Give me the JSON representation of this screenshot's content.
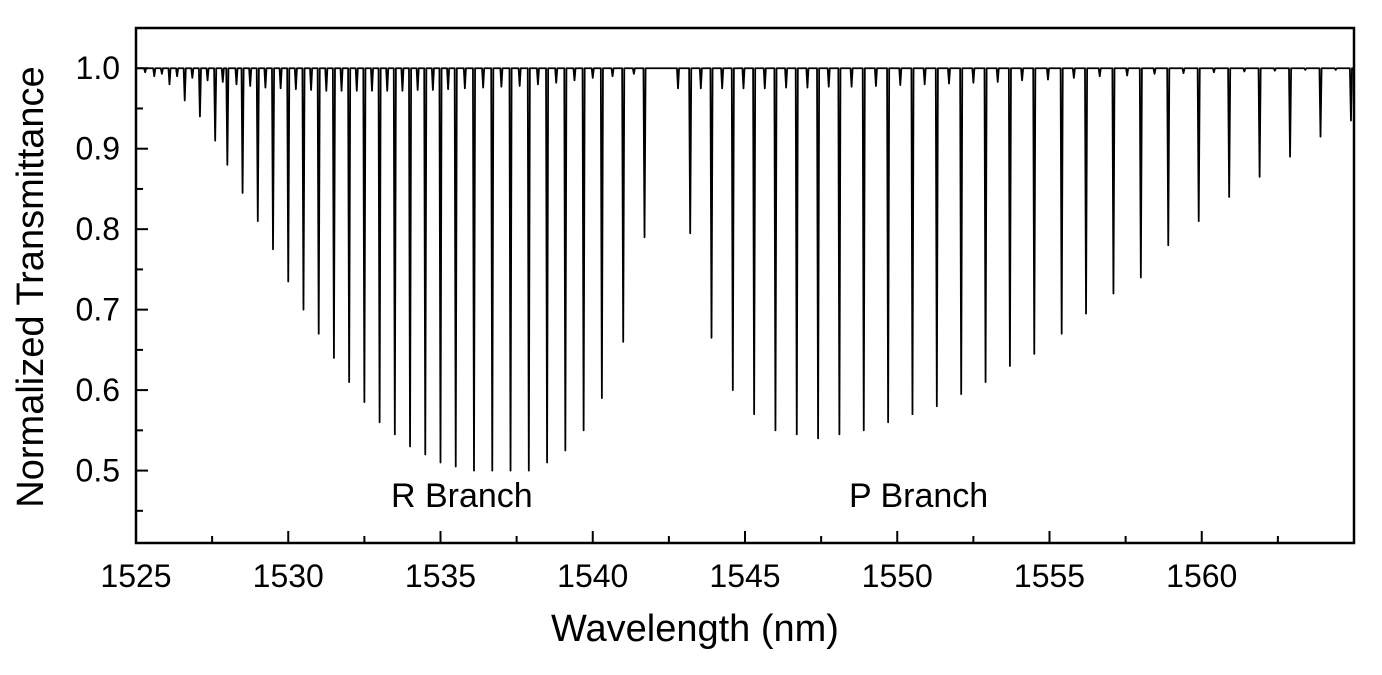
{
  "chart_data": {
    "type": "line",
    "xlabel": "Wavelength (nm)",
    "ylabel": "Normalized Transmittance",
    "xlim": [
      1525,
      1565
    ],
    "ylim": [
      0.41,
      1.05
    ],
    "grid": false,
    "legend": "none",
    "x_ticks": [
      {
        "value": 1525,
        "label": "1525"
      },
      {
        "value": 1530,
        "label": "1530"
      },
      {
        "value": 1535,
        "label": "1535"
      },
      {
        "value": 1540,
        "label": "1540"
      },
      {
        "value": 1545,
        "label": "1545"
      },
      {
        "value": 1550,
        "label": "1550"
      },
      {
        "value": 1555,
        "label": "1555"
      },
      {
        "value": 1560,
        "label": "1560"
      }
    ],
    "y_ticks": [
      {
        "value": 0.5,
        "label": "0.5"
      },
      {
        "value": 0.6,
        "label": "0.6"
      },
      {
        "value": 0.7,
        "label": "0.7"
      },
      {
        "value": 0.8,
        "label": "0.8"
      },
      {
        "value": 0.9,
        "label": "0.9"
      },
      {
        "value": 1.0,
        "label": "1.0"
      }
    ],
    "annotations": [
      {
        "text": "R Branch",
        "x": 1535.7,
        "y": 0.455
      },
      {
        "text": "P Branch",
        "x": 1550.7,
        "y": 0.455
      }
    ],
    "baseline": 1.0,
    "series": [
      {
        "absorption_lines": [
          {
            "x": 1525.6,
            "y": 0.99
          },
          {
            "x": 1526.1,
            "y": 0.98
          },
          {
            "x": 1526.6,
            "y": 0.96
          },
          {
            "x": 1527.1,
            "y": 0.94
          },
          {
            "x": 1527.6,
            "y": 0.91
          },
          {
            "x": 1528.0,
            "y": 0.88
          },
          {
            "x": 1528.5,
            "y": 0.845
          },
          {
            "x": 1529.0,
            "y": 0.81
          },
          {
            "x": 1529.5,
            "y": 0.775
          },
          {
            "x": 1530.0,
            "y": 0.735
          },
          {
            "x": 1530.5,
            "y": 0.7
          },
          {
            "x": 1531.0,
            "y": 0.67
          },
          {
            "x": 1531.5,
            "y": 0.64
          },
          {
            "x": 1532.0,
            "y": 0.61
          },
          {
            "x": 1532.5,
            "y": 0.585
          },
          {
            "x": 1533.0,
            "y": 0.56
          },
          {
            "x": 1533.5,
            "y": 0.545
          },
          {
            "x": 1534.0,
            "y": 0.53
          },
          {
            "x": 1534.5,
            "y": 0.52
          },
          {
            "x": 1535.0,
            "y": 0.51
          },
          {
            "x": 1535.5,
            "y": 0.505
          },
          {
            "x": 1536.1,
            "y": 0.5
          },
          {
            "x": 1536.7,
            "y": 0.5
          },
          {
            "x": 1537.3,
            "y": 0.5
          },
          {
            "x": 1537.9,
            "y": 0.5
          },
          {
            "x": 1538.5,
            "y": 0.51
          },
          {
            "x": 1539.1,
            "y": 0.525
          },
          {
            "x": 1539.7,
            "y": 0.55
          },
          {
            "x": 1540.3,
            "y": 0.59
          },
          {
            "x": 1541.0,
            "y": 0.66
          },
          {
            "x": 1541.7,
            "y": 0.79
          },
          {
            "x": 1543.2,
            "y": 0.795
          },
          {
            "x": 1543.9,
            "y": 0.665
          },
          {
            "x": 1544.6,
            "y": 0.6
          },
          {
            "x": 1545.3,
            "y": 0.57
          },
          {
            "x": 1546.0,
            "y": 0.55
          },
          {
            "x": 1546.7,
            "y": 0.545
          },
          {
            "x": 1547.4,
            "y": 0.54
          },
          {
            "x": 1548.1,
            "y": 0.545
          },
          {
            "x": 1548.9,
            "y": 0.55
          },
          {
            "x": 1549.7,
            "y": 0.56
          },
          {
            "x": 1550.5,
            "y": 0.57
          },
          {
            "x": 1551.3,
            "y": 0.58
          },
          {
            "x": 1552.1,
            "y": 0.595
          },
          {
            "x": 1552.9,
            "y": 0.61
          },
          {
            "x": 1553.7,
            "y": 0.63
          },
          {
            "x": 1554.5,
            "y": 0.645
          },
          {
            "x": 1555.4,
            "y": 0.67
          },
          {
            "x": 1556.2,
            "y": 0.695
          },
          {
            "x": 1557.1,
            "y": 0.72
          },
          {
            "x": 1558.0,
            "y": 0.74
          },
          {
            "x": 1558.9,
            "y": 0.78
          },
          {
            "x": 1559.9,
            "y": 0.81
          },
          {
            "x": 1560.9,
            "y": 0.84
          },
          {
            "x": 1561.9,
            "y": 0.865
          },
          {
            "x": 1562.9,
            "y": 0.89
          },
          {
            "x": 1563.9,
            "y": 0.915
          },
          {
            "x": 1564.9,
            "y": 0.935
          }
        ],
        "weak_lines": [
          {
            "x": 1525.3,
            "y": 0.995
          },
          {
            "x": 1525.85,
            "y": 0.993
          },
          {
            "x": 1526.35,
            "y": 0.99
          },
          {
            "x": 1526.85,
            "y": 0.988
          },
          {
            "x": 1527.35,
            "y": 0.985
          },
          {
            "x": 1527.85,
            "y": 0.983
          },
          {
            "x": 1528.3,
            "y": 0.98
          },
          {
            "x": 1528.75,
            "y": 0.978
          },
          {
            "x": 1529.25,
            "y": 0.976
          },
          {
            "x": 1529.75,
            "y": 0.975
          },
          {
            "x": 1530.25,
            "y": 0.974
          },
          {
            "x": 1530.75,
            "y": 0.973
          },
          {
            "x": 1531.25,
            "y": 0.972
          },
          {
            "x": 1531.75,
            "y": 0.972
          },
          {
            "x": 1532.25,
            "y": 0.972
          },
          {
            "x": 1532.75,
            "y": 0.972
          },
          {
            "x": 1533.25,
            "y": 0.972
          },
          {
            "x": 1533.75,
            "y": 0.972
          },
          {
            "x": 1534.25,
            "y": 0.973
          },
          {
            "x": 1534.75,
            "y": 0.973
          },
          {
            "x": 1535.25,
            "y": 0.974
          },
          {
            "x": 1535.8,
            "y": 0.975
          },
          {
            "x": 1536.4,
            "y": 0.976
          },
          {
            "x": 1537.0,
            "y": 0.977
          },
          {
            "x": 1537.6,
            "y": 0.978
          },
          {
            "x": 1538.2,
            "y": 0.98
          },
          {
            "x": 1538.8,
            "y": 0.982
          },
          {
            "x": 1539.4,
            "y": 0.985
          },
          {
            "x": 1540.0,
            "y": 0.988
          },
          {
            "x": 1540.65,
            "y": 0.99
          },
          {
            "x": 1541.35,
            "y": 0.993
          },
          {
            "x": 1542.8,
            "y": 0.975
          },
          {
            "x": 1543.55,
            "y": 0.975
          },
          {
            "x": 1544.25,
            "y": 0.975
          },
          {
            "x": 1544.95,
            "y": 0.975
          },
          {
            "x": 1545.65,
            "y": 0.975
          },
          {
            "x": 1546.35,
            "y": 0.976
          },
          {
            "x": 1547.05,
            "y": 0.976
          },
          {
            "x": 1547.75,
            "y": 0.977
          },
          {
            "x": 1548.5,
            "y": 0.977
          },
          {
            "x": 1549.3,
            "y": 0.978
          },
          {
            "x": 1550.1,
            "y": 0.979
          },
          {
            "x": 1550.9,
            "y": 0.98
          },
          {
            "x": 1551.7,
            "y": 0.981
          },
          {
            "x": 1552.5,
            "y": 0.982
          },
          {
            "x": 1553.3,
            "y": 0.983
          },
          {
            "x": 1554.1,
            "y": 0.985
          },
          {
            "x": 1554.95,
            "y": 0.986
          },
          {
            "x": 1555.8,
            "y": 0.988
          },
          {
            "x": 1556.65,
            "y": 0.99
          },
          {
            "x": 1557.55,
            "y": 0.991
          },
          {
            "x": 1558.45,
            "y": 0.993
          },
          {
            "x": 1559.4,
            "y": 0.994
          },
          {
            "x": 1560.4,
            "y": 0.995
          },
          {
            "x": 1561.4,
            "y": 0.996
          },
          {
            "x": 1562.4,
            "y": 0.997
          },
          {
            "x": 1563.4,
            "y": 0.998
          },
          {
            "x": 1564.4,
            "y": 0.998
          }
        ]
      }
    ]
  }
}
